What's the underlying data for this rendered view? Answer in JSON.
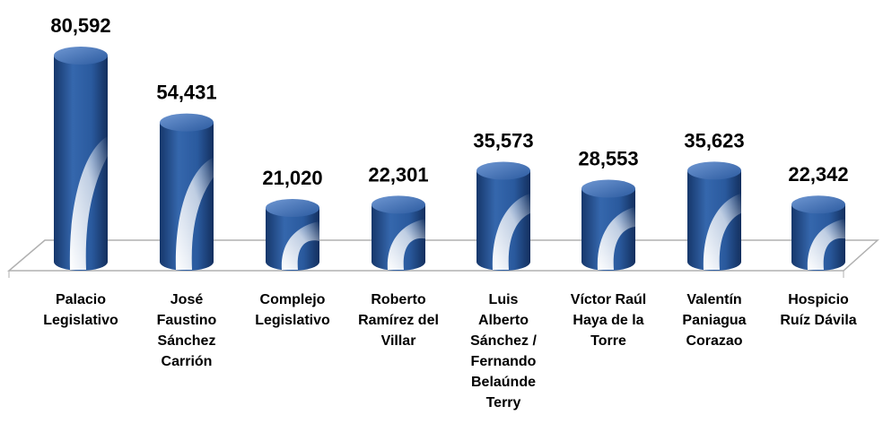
{
  "chart_data": {
    "type": "bar",
    "categories": [
      "Palacio Legislativo",
      "José Faustino Sánchez Carrión",
      "Complejo Legislativo",
      "Roberto Ramírez del Villar",
      "Luis Alberto Sánchez / Fernando Belaúnde Terry",
      "Víctor Raúl Haya de la Torre",
      "Valentín Paniagua Corazao",
      "Hospicio Ruíz Dávila"
    ],
    "values": [
      80592,
      54431,
      21020,
      22301,
      35573,
      28553,
      35623,
      22342
    ],
    "value_labels": [
      "80,592",
      "54,431",
      "21,020",
      "22,301",
      "35,573",
      "28,553",
      "35,623",
      "22,342"
    ],
    "color": "#2a5a9e"
  }
}
